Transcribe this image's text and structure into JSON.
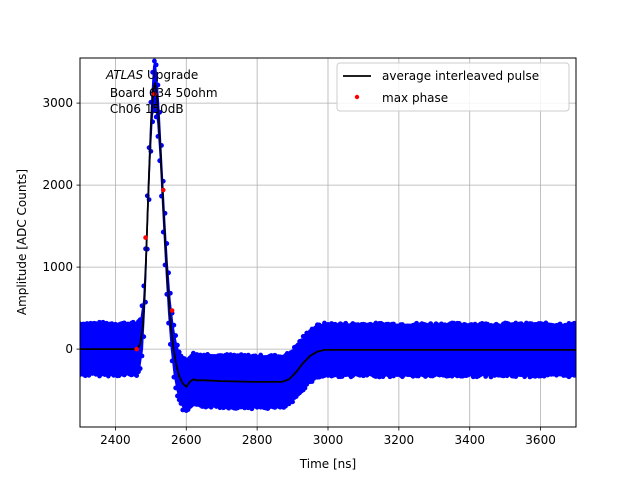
{
  "chart_data": {
    "type": "scatter",
    "xlabel": "Time [ns]",
    "ylabel": "Amplitude [ADC Counts]",
    "xlim": [
      2300,
      3700
    ],
    "ylim": [
      -950,
      3550
    ],
    "xticks": [
      2400,
      2600,
      2800,
      3000,
      3200,
      3400,
      3600
    ],
    "yticks": [
      0,
      1000,
      2000,
      3000
    ],
    "grid": true,
    "legend_position": "top-right",
    "annotation": {
      "line1_italic": "ATLAS",
      "line1_rest": " Upgrade",
      "line2": " Board 634 50ohm",
      "line3": " Ch06 150dB"
    },
    "noise_band": {
      "name": "",
      "color": "#0000ff",
      "half_width": 300
    },
    "series": [
      {
        "name": "average interleaved pulse",
        "color": "#000000",
        "style": "line",
        "x": [
          2300,
          2460,
          2470,
          2478,
          2485,
          2492,
          2500,
          2506,
          2512,
          2518,
          2525,
          2532,
          2540,
          2548,
          2556,
          2564,
          2572,
          2580,
          2590,
          2600,
          2610,
          2620,
          2630,
          2650,
          2700,
          2800,
          2870,
          2890,
          2910,
          2930,
          2950,
          2970,
          2990,
          3000,
          3100,
          3200,
          3400,
          3700
        ],
        "y": [
          0,
          0,
          60,
          300,
          900,
          1800,
          2700,
          3150,
          3250,
          3050,
          2600,
          2000,
          1350,
          750,
          300,
          0,
          -200,
          -330,
          -420,
          -460,
          -400,
          -370,
          -380,
          -380,
          -390,
          -400,
          -400,
          -370,
          -280,
          -170,
          -80,
          -30,
          -10,
          -10,
          -10,
          -10,
          -10,
          -10
        ]
      },
      {
        "name": "max phase",
        "color": "#ff0000",
        "style": "points",
        "x": [
          2460,
          2485,
          2510,
          2535,
          2560
        ],
        "y": [
          0,
          1360,
          3110,
          1940,
          470
        ]
      }
    ]
  }
}
